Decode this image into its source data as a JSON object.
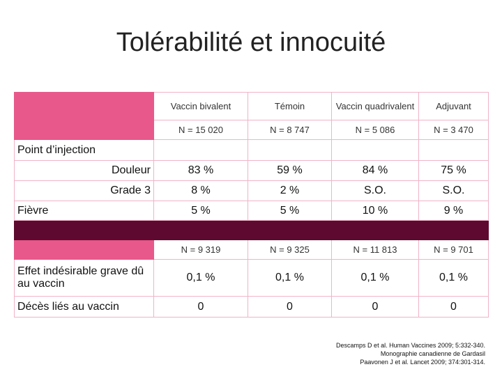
{
  "header": {
    "title": "Tolérabilité et innocuité"
  },
  "table": {
    "columns": [
      "Vaccin bivalent",
      "Témoin",
      "Vaccin quadrivalent",
      "Adjuvant"
    ],
    "counts_a": [
      "N = 15 020",
      "N = 8 747",
      "N = 5 086",
      "N = 3 470"
    ],
    "section": "Point d’injection",
    "rows_a": [
      [
        "Douleur",
        "83 %",
        "59 %",
        "84 %",
        "75 %"
      ],
      [
        "Grade 3",
        "8 %",
        "2 %",
        "S.O.",
        "S.O."
      ],
      [
        "Fièvre",
        "5 %",
        "5 %",
        "10 %",
        "9 %"
      ]
    ],
    "counts_b": [
      "N = 9 319",
      "N =  9 325",
      "N = 11 813",
      "N = 9 701"
    ],
    "rows_b": [
      [
        "Effet indésirable grave dû au vaccin",
        "0,1 %",
        "0,1 %",
        "0,1 %",
        "0,1 %"
      ],
      [
        "Décès liés au vaccin",
        "0",
        "0",
        "0",
        "0"
      ]
    ]
  },
  "footnotes": [
    "Descamps D et al. Human Vaccines 2009; 5:332-340.",
    "Monographie canadienne de Gardasil",
    "Paavonen J et al. Lancet 2009; 374:301-314."
  ]
}
